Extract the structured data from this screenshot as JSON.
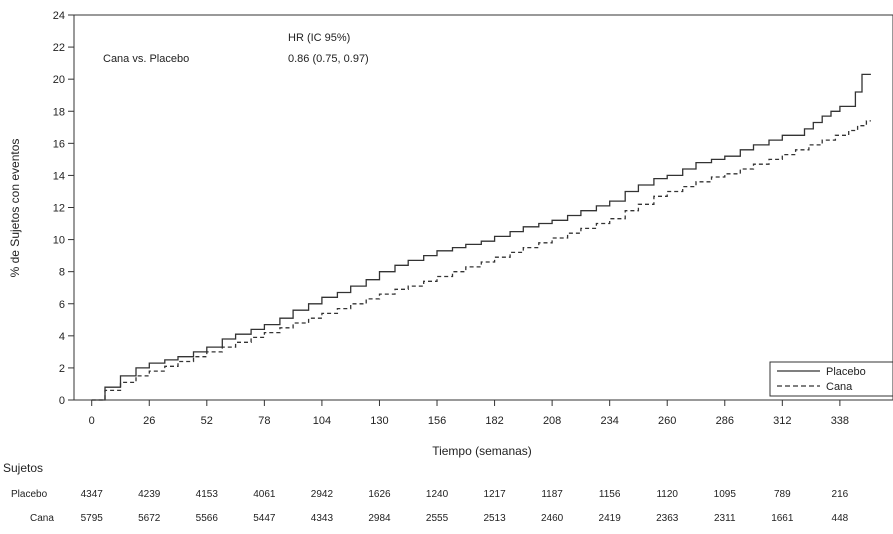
{
  "chart_data": {
    "type": "line",
    "xlabel": "Tiempo (semanas)",
    "ylabel": "% de Sujetos con eventos",
    "xlim": [
      -8,
      362
    ],
    "ylim": [
      0,
      24
    ],
    "xticks": [
      0,
      26,
      52,
      78,
      104,
      130,
      156,
      182,
      208,
      234,
      260,
      286,
      312,
      338
    ],
    "yticks": [
      0,
      2,
      4,
      6,
      8,
      10,
      12,
      14,
      16,
      18,
      20,
      22,
      24
    ],
    "legend_position": "bottom-right",
    "colors": {
      "placebo": "#333333",
      "cana": "#333333"
    },
    "annotation": {
      "header": "HR (IC 95%)",
      "label": "Cana vs. Placebo",
      "value": "0.86 (0.75, 0.97)"
    },
    "series": [
      {
        "name": "Placebo",
        "style": "solid",
        "x": [
          0,
          6,
          13,
          20,
          26,
          33,
          39,
          46,
          52,
          59,
          65,
          72,
          78,
          85,
          91,
          98,
          104,
          111,
          117,
          124,
          130,
          137,
          143,
          150,
          156,
          163,
          169,
          176,
          182,
          189,
          195,
          202,
          208,
          215,
          221,
          228,
          234,
          241,
          247,
          254,
          260,
          267,
          273,
          280,
          286,
          293,
          299,
          306,
          312,
          318,
          322,
          326,
          330,
          334,
          338,
          342,
          345,
          348,
          352
        ],
        "y": [
          0,
          0.8,
          1.5,
          2.0,
          2.3,
          2.5,
          2.7,
          3.0,
          3.3,
          3.8,
          4.1,
          4.4,
          4.7,
          5.1,
          5.6,
          6.0,
          6.4,
          6.7,
          7.1,
          7.5,
          8.0,
          8.4,
          8.7,
          9.0,
          9.3,
          9.5,
          9.7,
          9.9,
          10.2,
          10.5,
          10.8,
          11.0,
          11.2,
          11.5,
          11.8,
          12.1,
          12.4,
          13.0,
          13.4,
          13.8,
          14.0,
          14.4,
          14.8,
          15.0,
          15.2,
          15.6,
          15.9,
          16.2,
          16.5,
          16.5,
          16.9,
          17.3,
          17.7,
          18.0,
          18.3,
          18.3,
          19.2,
          20.3,
          20.3
        ]
      },
      {
        "name": "Cana",
        "style": "dashed",
        "x": [
          0,
          6,
          13,
          20,
          26,
          33,
          39,
          46,
          52,
          59,
          65,
          72,
          78,
          85,
          91,
          98,
          104,
          111,
          117,
          124,
          130,
          137,
          143,
          150,
          156,
          163,
          169,
          176,
          182,
          189,
          195,
          202,
          208,
          215,
          221,
          228,
          234,
          241,
          247,
          254,
          260,
          267,
          273,
          280,
          286,
          293,
          299,
          306,
          312,
          318,
          324,
          330,
          336,
          342,
          346,
          350,
          352
        ],
        "y": [
          0,
          0.6,
          1.1,
          1.5,
          1.8,
          2.1,
          2.4,
          2.7,
          3.0,
          3.3,
          3.6,
          3.9,
          4.2,
          4.5,
          4.8,
          5.1,
          5.4,
          5.7,
          6.0,
          6.3,
          6.6,
          6.9,
          7.1,
          7.4,
          7.7,
          8.0,
          8.3,
          8.6,
          8.9,
          9.2,
          9.5,
          9.8,
          10.1,
          10.4,
          10.7,
          11.0,
          11.3,
          11.8,
          12.2,
          12.7,
          13.0,
          13.3,
          13.6,
          13.9,
          14.1,
          14.4,
          14.7,
          15.0,
          15.3,
          15.6,
          15.9,
          16.2,
          16.5,
          16.8,
          17.1,
          17.4,
          17.4
        ]
      }
    ],
    "risk_table": {
      "header": "Sujetos",
      "rows": [
        {
          "label": "Placebo",
          "values": [
            "4347",
            "4239",
            "4153",
            "4061",
            "2942",
            "1626",
            "1240",
            "1217",
            "1187",
            "1156",
            "1120",
            "1095",
            "789",
            "216"
          ]
        },
        {
          "label": "Cana",
          "values": [
            "5795",
            "5672",
            "5566",
            "5447",
            "4343",
            "2984",
            "2555",
            "2513",
            "2460",
            "2419",
            "2363",
            "2311",
            "1661",
            "448"
          ]
        }
      ]
    }
  }
}
